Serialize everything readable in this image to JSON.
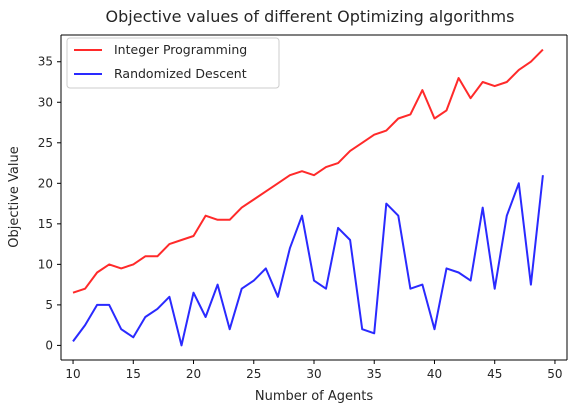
{
  "chart_data": {
    "type": "line",
    "title": "Objective values of different Optimizing algorithms",
    "xlabel": "Number of Agents",
    "ylabel": "Objective Value",
    "xlim": [
      9.0,
      51.0
    ],
    "ylim": [
      -1.8,
      38.3
    ],
    "xticks": [
      10,
      15,
      20,
      25,
      30,
      35,
      40,
      45,
      50
    ],
    "yticks": [
      0,
      5,
      10,
      15,
      20,
      25,
      30,
      35
    ],
    "grid": false,
    "legend_position": "top-left",
    "x": [
      10,
      11,
      12,
      13,
      14,
      15,
      16,
      17,
      18,
      19,
      20,
      21,
      22,
      23,
      24,
      25,
      26,
      27,
      28,
      29,
      30,
      31,
      32,
      33,
      34,
      35,
      36,
      37,
      38,
      39,
      40,
      41,
      42,
      43,
      44,
      45,
      46,
      47,
      48,
      49
    ],
    "series": [
      {
        "name": "Integer Programming",
        "color": "#ff2a2a",
        "values": [
          6.5,
          7.0,
          9.0,
          10.0,
          9.5,
          10.0,
          11.0,
          11.0,
          12.5,
          13.0,
          13.5,
          16.0,
          15.5,
          15.5,
          17.0,
          18.0,
          19.0,
          20.0,
          21.0,
          21.5,
          21.0,
          22.0,
          22.5,
          24.0,
          25.0,
          26.0,
          26.5,
          28.0,
          28.5,
          31.5,
          28.0,
          29.0,
          33.0,
          30.5,
          32.5,
          32.0,
          32.5,
          34.0,
          35.0,
          36.5
        ]
      },
      {
        "name": "Randomized Descent",
        "color": "#2a2aff",
        "values": [
          0.5,
          2.5,
          5.0,
          5.0,
          2.0,
          1.0,
          3.5,
          4.5,
          6.0,
          0.0,
          6.5,
          3.5,
          7.5,
          2.0,
          7.0,
          8.0,
          9.5,
          6.0,
          12.0,
          16.0,
          8.0,
          7.0,
          14.5,
          13.0,
          2.0,
          1.5,
          17.5,
          16.0,
          7.0,
          7.5,
          2.0,
          9.5,
          9.0,
          8.0,
          17.0,
          7.0,
          16.0,
          20.0,
          7.5,
          21.0
        ]
      }
    ]
  }
}
